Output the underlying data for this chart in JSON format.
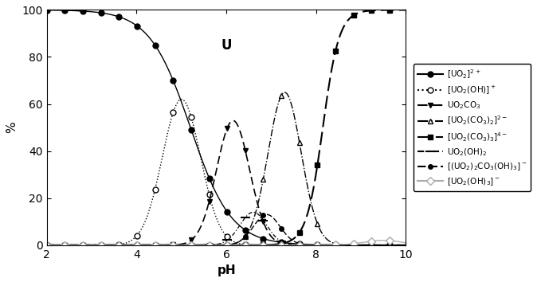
{
  "title": "U",
  "xlabel": "pH",
  "ylabel": "%",
  "xlim": [
    2,
    10
  ],
  "ylim": [
    0,
    100
  ],
  "xticks": [
    2,
    4,
    6,
    8,
    10
  ],
  "yticks": [
    0,
    20,
    40,
    60,
    80,
    100
  ],
  "legend_labels": [
    "[UO$_2$]$^{2+}$",
    "[UO$_2$(OH)]$^+$",
    "UO$_2$CO$_3$",
    "[UO$_2$(CO$_3$)$_2$]$^{2-}$",
    "[UO$_2$(CO$_3$)$_3$]$^{4-}$",
    "UO$_2$(OH)$_2$",
    "[(UO$_2$)$_2$CO$_3$(OH)$_3$]$^-$",
    "[UO$_2$(OH)$_3$]$^-$"
  ],
  "figsize": [
    6.74,
    3.54
  ],
  "dpi": 100
}
